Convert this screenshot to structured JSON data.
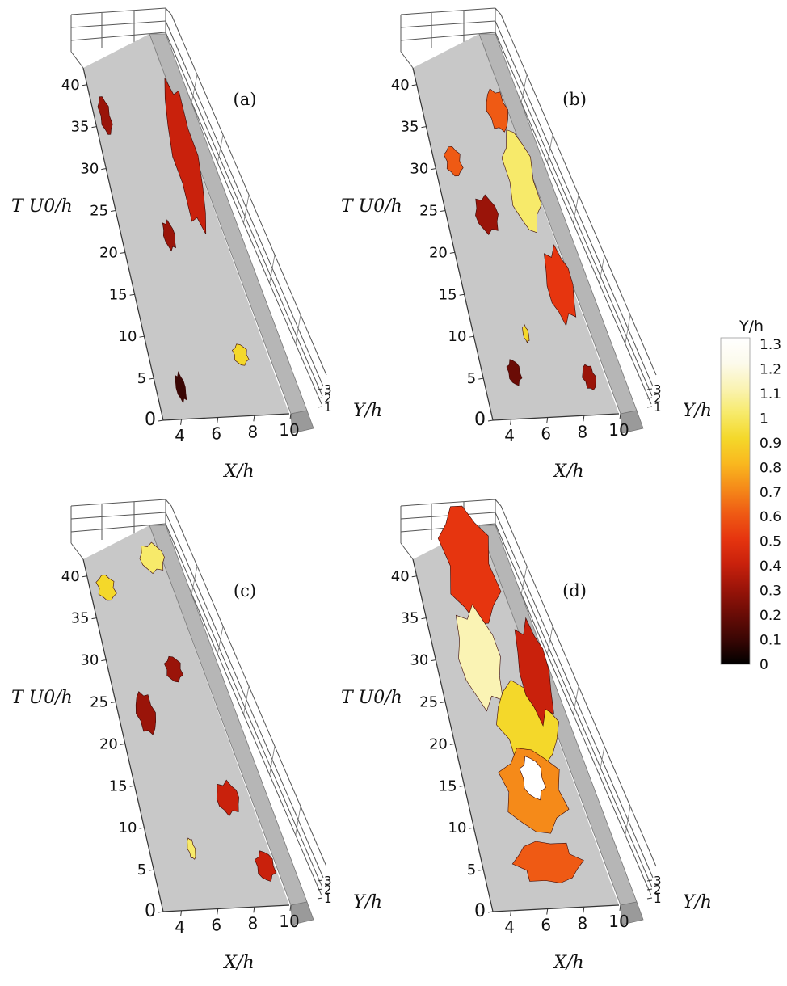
{
  "colors": {
    "floor": "#c8c8c8",
    "step_top": "#b6b6b6",
    "step_side": "#9a9a9a",
    "colormap": [
      "#000000",
      "#3a0604",
      "#6a0c06",
      "#9a1409",
      "#c9210c",
      "#e6350f",
      "#ef5a14",
      "#f58a19",
      "#f9b81f",
      "#f4d82a",
      "#f7ea6a",
      "#faf3b4",
      "#fcfaec",
      "#ffffff"
    ]
  },
  "colorbar": {
    "title": "Y/h",
    "ticks": [
      "1.3",
      "1.2",
      "1.1",
      "1",
      "0.9",
      "0.8",
      "0.7",
      "0.6",
      "0.5",
      "0.4",
      "0.3",
      "0.2",
      "0.1",
      "0"
    ]
  },
  "chart_data": [
    {
      "type": "3d-isosurface",
      "panel": "(a)",
      "xlabel": "X/h",
      "ylabel": "T U0/h",
      "zlabel": "Y/h",
      "x_ticks": [
        "4",
        "6",
        "8",
        "10"
      ],
      "t_ticks": [
        "0",
        "5",
        "10",
        "15",
        "20",
        "25",
        "30",
        "35",
        "40"
      ],
      "y_ticks": [
        "1",
        "2",
        "3"
      ],
      "xlim": [
        3,
        10
      ],
      "tlim": [
        0,
        42
      ],
      "ylim": [
        0,
        3
      ],
      "structures": [
        {
          "x": 3.3,
          "t": 34,
          "dx": 0.6,
          "dt": 4.5,
          "level": 0.3
        },
        {
          "x": 5.3,
          "t": 20,
          "dx": 0.6,
          "dt": 3.5,
          "level": 0.3
        },
        {
          "x": 6.8,
          "t": 22,
          "dx": 1.3,
          "dt": 18,
          "level": 0.35
        },
        {
          "x": 7.6,
          "t": 6,
          "dx": 0.8,
          "dt": 2.5,
          "level": 0.85
        },
        {
          "x": 4.1,
          "t": 2,
          "dx": 0.5,
          "dt": 3.5,
          "level": 0.1
        }
      ]
    },
    {
      "type": "3d-isosurface",
      "panel": "(b)",
      "xlabel": "X/h",
      "ylabel": "T U0/h",
      "zlabel": "Y/h",
      "x_ticks": [
        "4",
        "6",
        "8",
        "10"
      ],
      "t_ticks": [
        "0",
        "5",
        "10",
        "15",
        "20",
        "25",
        "30",
        "35",
        "40"
      ],
      "y_ticks": [
        "1",
        "2",
        "3"
      ],
      "xlim": [
        3,
        10
      ],
      "tlim": [
        0,
        42
      ],
      "ylim": [
        0,
        3
      ],
      "structures": [
        {
          "x": 3.6,
          "t": 29,
          "dx": 0.9,
          "dt": 3.5,
          "level": 0.55
        },
        {
          "x": 4.6,
          "t": 22,
          "dx": 1.2,
          "dt": 4.5,
          "level": 0.3
        },
        {
          "x": 6.5,
          "t": 34,
          "dx": 1.1,
          "dt": 5,
          "level": 0.6
        },
        {
          "x": 6.7,
          "t": 22,
          "dx": 1.6,
          "dt": 12,
          "level": 1.0
        },
        {
          "x": 7.6,
          "t": 11,
          "dx": 1.4,
          "dt": 9,
          "level": 0.45
        },
        {
          "x": 8.4,
          "t": 3,
          "dx": 0.7,
          "dt": 3,
          "level": 0.3
        },
        {
          "x": 4.4,
          "t": 4,
          "dx": 0.7,
          "dt": 3,
          "level": 0.2
        },
        {
          "x": 5.7,
          "t": 9,
          "dx": 0.3,
          "dt": 2,
          "level": 0.9
        }
      ]
    },
    {
      "type": "3d-isosurface",
      "panel": "(c)",
      "xlabel": "X/h",
      "ylabel": "T U0/h",
      "zlabel": "Y/h",
      "x_ticks": [
        "4",
        "6",
        "8",
        "10"
      ],
      "t_ticks": [
        "0",
        "5",
        "10",
        "15",
        "20",
        "25",
        "30",
        "35",
        "40"
      ],
      "y_ticks": [
        "1",
        "2",
        "3"
      ],
      "xlim": [
        3,
        10
      ],
      "tlim": [
        0,
        42
      ],
      "ylim": [
        0,
        3
      ],
      "structures": [
        {
          "x": 3.4,
          "t": 37,
          "dx": 1.0,
          "dt": 3,
          "level": 0.85
        },
        {
          "x": 6.1,
          "t": 40,
          "dx": 1.3,
          "dt": 3.5,
          "level": 1.0
        },
        {
          "x": 4.0,
          "t": 21,
          "dx": 1.0,
          "dt": 5,
          "level": 0.25
        },
        {
          "x": 6.1,
          "t": 27,
          "dx": 0.9,
          "dt": 3,
          "level": 0.3
        },
        {
          "x": 7.3,
          "t": 11,
          "dx": 1.2,
          "dt": 4,
          "level": 0.35
        },
        {
          "x": 5.1,
          "t": 6,
          "dx": 0.4,
          "dt": 2.5,
          "level": 0.95
        },
        {
          "x": 8.6,
          "t": 3,
          "dx": 1.0,
          "dt": 3.5,
          "level": 0.35
        }
      ]
    },
    {
      "type": "3d-isosurface",
      "panel": "(d)",
      "xlabel": "X/h",
      "ylabel": "T U0/h",
      "zlabel": "Y/h",
      "x_ticks": [
        "4",
        "6",
        "8",
        "10"
      ],
      "t_ticks": [
        "0",
        "5",
        "10",
        "15",
        "20",
        "25",
        "30",
        "35",
        "40"
      ],
      "y_ticks": [
        "1",
        "2",
        "3"
      ],
      "xlim": [
        3,
        10
      ],
      "tlim": [
        0,
        42
      ],
      "ylim": [
        0,
        3
      ],
      "structures": [
        {
          "x": 4.6,
          "t": 34,
          "dx": 2.8,
          "dt": 14,
          "level": 0.45
        },
        {
          "x": 4.3,
          "t": 24,
          "dx": 2.2,
          "dt": 12,
          "level": 1.15
        },
        {
          "x": 5.6,
          "t": 17,
          "dx": 3.2,
          "dt": 10,
          "level": 0.85
        },
        {
          "x": 5.0,
          "t": 9,
          "dx": 3.4,
          "dt": 10,
          "level": 0.7
        },
        {
          "x": 7.4,
          "t": 22,
          "dx": 1.6,
          "dt": 12,
          "level": 0.35
        },
        {
          "x": 4.8,
          "t": 3,
          "dx": 3.6,
          "dt": 5,
          "level": 0.55
        },
        {
          "x": 6.2,
          "t": 13,
          "dx": 1.2,
          "dt": 5,
          "level": 1.3
        }
      ]
    }
  ]
}
